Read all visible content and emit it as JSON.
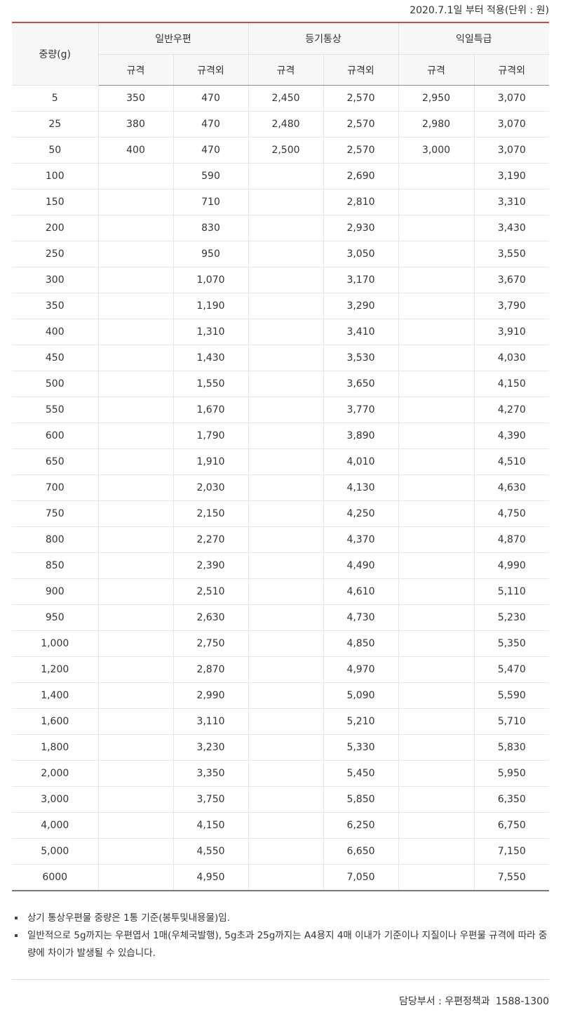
{
  "applied_note": "2020.7.1일 부터 적용(단위 : 원)",
  "table": {
    "weight_header": "중량(g)",
    "groups": [
      "일반우편",
      "등기통상",
      "익일특급"
    ],
    "sub_headers": [
      "규격",
      "규격외",
      "규격",
      "규격외",
      "규격",
      "규격외"
    ],
    "rows": [
      [
        "5",
        "350",
        "470",
        "2,450",
        "2,570",
        "2,950",
        "3,070"
      ],
      [
        "25",
        "380",
        "470",
        "2,480",
        "2,570",
        "2,980",
        "3,070"
      ],
      [
        "50",
        "400",
        "470",
        "2,500",
        "2,570",
        "3,000",
        "3,070"
      ],
      [
        "100",
        "",
        "590",
        "",
        "2,690",
        "",
        "3,190"
      ],
      [
        "150",
        "",
        "710",
        "",
        "2,810",
        "",
        "3,310"
      ],
      [
        "200",
        "",
        "830",
        "",
        "2,930",
        "",
        "3,430"
      ],
      [
        "250",
        "",
        "950",
        "",
        "3,050",
        "",
        "3,550"
      ],
      [
        "300",
        "",
        "1,070",
        "",
        "3,170",
        "",
        "3,670"
      ],
      [
        "350",
        "",
        "1,190",
        "",
        "3,290",
        "",
        "3,790"
      ],
      [
        "400",
        "",
        "1,310",
        "",
        "3,410",
        "",
        "3,910"
      ],
      [
        "450",
        "",
        "1,430",
        "",
        "3,530",
        "",
        "4,030"
      ],
      [
        "500",
        "",
        "1,550",
        "",
        "3,650",
        "",
        "4,150"
      ],
      [
        "550",
        "",
        "1,670",
        "",
        "3,770",
        "",
        "4,270"
      ],
      [
        "600",
        "",
        "1,790",
        "",
        "3,890",
        "",
        "4,390"
      ],
      [
        "650",
        "",
        "1,910",
        "",
        "4,010",
        "",
        "4,510"
      ],
      [
        "700",
        "",
        "2,030",
        "",
        "4,130",
        "",
        "4,630"
      ],
      [
        "750",
        "",
        "2,150",
        "",
        "4,250",
        "",
        "4,750"
      ],
      [
        "800",
        "",
        "2,270",
        "",
        "4,370",
        "",
        "4,870"
      ],
      [
        "850",
        "",
        "2,390",
        "",
        "4,490",
        "",
        "4,990"
      ],
      [
        "900",
        "",
        "2,510",
        "",
        "4,610",
        "",
        "5,110"
      ],
      [
        "950",
        "",
        "2,630",
        "",
        "4,730",
        "",
        "5,230"
      ],
      [
        "1,000",
        "",
        "2,750",
        "",
        "4,850",
        "",
        "5,350"
      ],
      [
        "1,200",
        "",
        "2,870",
        "",
        "4,970",
        "",
        "5,470"
      ],
      [
        "1,400",
        "",
        "2,990",
        "",
        "5,090",
        "",
        "5,590"
      ],
      [
        "1,600",
        "",
        "3,110",
        "",
        "5,210",
        "",
        "5,710"
      ],
      [
        "1,800",
        "",
        "3,230",
        "",
        "5,330",
        "",
        "5,830"
      ],
      [
        "2,000",
        "",
        "3,350",
        "",
        "5,450",
        "",
        "5,950"
      ],
      [
        "3,000",
        "",
        "3,750",
        "",
        "5,850",
        "",
        "6,350"
      ],
      [
        "4,000",
        "",
        "4,150",
        "",
        "6,250",
        "",
        "6,750"
      ],
      [
        "5,000",
        "",
        "4,550",
        "",
        "6,650",
        "",
        "7,150"
      ],
      [
        "6000",
        "",
        "4,950",
        "",
        "7,050",
        "",
        "7,550"
      ]
    ]
  },
  "notes": [
    "상기 통상우편물 중량은 1통 기준(봉투및내용물)임.",
    "일반적으로 5g까지는 우편엽서 1매(우체국발행), 5g초과 25g까지는 A4용지 4매 이내가 기준이나 지질이나 우편물 규격에 따라 중량에 차이가 발생될 수 있습니다."
  ],
  "footer": {
    "department": "담당부서 : 우편정책과",
    "phone": "1588-1300"
  },
  "colors": {
    "accent_top_border": "#d9463f",
    "header_bg": "#f7f7f7"
  }
}
